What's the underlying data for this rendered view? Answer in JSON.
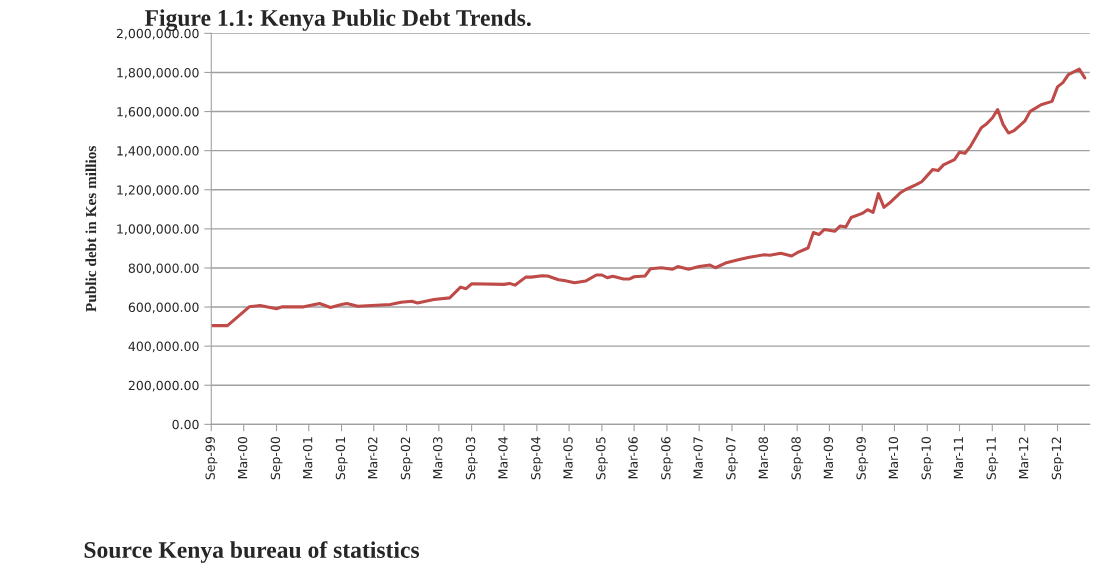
{
  "chart_data": {
    "type": "line",
    "title": "Figure 1.1: Kenya Public Debt Trends.",
    "ylabel": "Public debt in Kes millios",
    "annotations": [
      "Source Kenya bureau of statistics"
    ],
    "x": [
      "1999-09",
      "1999-12",
      "2000-04",
      "2000-06",
      "2000-09",
      "2000-10",
      "2001-02",
      "2001-05",
      "2001-07",
      "2001-09",
      "2001-10",
      "2001-12",
      "2002-06",
      "2002-08",
      "2002-10",
      "2002-11",
      "2003-02",
      "2003-05",
      "2003-07",
      "2003-08",
      "2003-09",
      "2004-03",
      "2004-04",
      "2004-05",
      "2004-07",
      "2004-08",
      "2004-10",
      "2004-11",
      "2005-01",
      "2005-02",
      "2005-04",
      "2005-06",
      "2005-08",
      "2005-09",
      "2005-10",
      "2005-11",
      "2006-01",
      "2006-02",
      "2006-03",
      "2006-05",
      "2006-06",
      "2006-08",
      "2006-10",
      "2006-11",
      "2007-01",
      "2007-03",
      "2007-05",
      "2007-06",
      "2007-08",
      "2007-10",
      "2007-12",
      "2008-03",
      "2008-04",
      "2008-06",
      "2008-08",
      "2008-09",
      "2008-11",
      "2008-12",
      "2009-01",
      "2009-02",
      "2009-04",
      "2009-05",
      "2009-06",
      "2009-07",
      "2009-09",
      "2009-10",
      "2009-11",
      "2009-12",
      "2010-01",
      "2010-02",
      "2010-04",
      "2010-05",
      "2010-07",
      "2010-08",
      "2010-10",
      "2010-11",
      "2010-12",
      "2011-02",
      "2011-03",
      "2011-04",
      "2011-05",
      "2011-07",
      "2011-08",
      "2011-09",
      "2011-10",
      "2011-11",
      "2011-12",
      "2012-01",
      "2012-03",
      "2012-04",
      "2012-06",
      "2012-08",
      "2012-09",
      "2012-10",
      "2012-11",
      "2013-01",
      "2013-02"
    ],
    "series": [
      {
        "color": "#be4b48",
        "values": [
          505000,
          505000,
          601000,
          608000,
          591000,
          601000,
          601000,
          618000,
          598000,
          613000,
          618000,
          604000,
          613000,
          625000,
          630000,
          621000,
          639000,
          647000,
          702000,
          694000,
          719000,
          716000,
          721000,
          712000,
          753000,
          753000,
          760000,
          759000,
          740000,
          736000,
          724000,
          733000,
          764000,
          764000,
          750000,
          757000,
          743000,
          743000,
          755000,
          759000,
          796000,
          801000,
          793000,
          807000,
          793000,
          807000,
          815000,
          801000,
          827000,
          841000,
          853000,
          868000,
          865000,
          875000,
          861000,
          878000,
          902000,
          981000,
          971000,
          997000,
          988000,
          1015000,
          1009000,
          1058000,
          1079000,
          1098000,
          1084000,
          1180000,
          1110000,
          1132000,
          1183000,
          1200000,
          1226000,
          1241000,
          1303000,
          1298000,
          1327000,
          1354000,
          1392000,
          1387000,
          1421000,
          1517000,
          1538000,
          1567000,
          1610000,
          1533000,
          1490000,
          1502000,
          1551000,
          1601000,
          1635000,
          1652000,
          1726000,
          1748000,
          1789000,
          1817000,
          1772000
        ]
      }
    ],
    "xlim": [
      "1999-09",
      "2013-03"
    ],
    "xticks": [
      {
        "value": "1999-09",
        "label": "Sep-99"
      },
      {
        "value": "2000-03",
        "label": "Mar-00"
      },
      {
        "value": "2000-09",
        "label": "Sep-00"
      },
      {
        "value": "2001-03",
        "label": "Mar-01"
      },
      {
        "value": "2001-09",
        "label": "Sep-01"
      },
      {
        "value": "2002-03",
        "label": "Mar-02"
      },
      {
        "value": "2002-09",
        "label": "Sep-02"
      },
      {
        "value": "2003-03",
        "label": "Mar-03"
      },
      {
        "value": "2003-09",
        "label": "Sep-03"
      },
      {
        "value": "2004-03",
        "label": "Mar-04"
      },
      {
        "value": "2004-09",
        "label": "Sep-04"
      },
      {
        "value": "2005-03",
        "label": "Mar-05"
      },
      {
        "value": "2005-09",
        "label": "Sep-05"
      },
      {
        "value": "2006-03",
        "label": "Mar-06"
      },
      {
        "value": "2006-09",
        "label": "Sep-06"
      },
      {
        "value": "2007-03",
        "label": "Mar-07"
      },
      {
        "value": "2007-09",
        "label": "Sep-07"
      },
      {
        "value": "2008-03",
        "label": "Mar-08"
      },
      {
        "value": "2008-09",
        "label": "Sep-08"
      },
      {
        "value": "2009-03",
        "label": "Mar-09"
      },
      {
        "value": "2009-09",
        "label": "Sep-09"
      },
      {
        "value": "2010-03",
        "label": "Mar-10"
      },
      {
        "value": "2010-09",
        "label": "Sep-10"
      },
      {
        "value": "2011-03",
        "label": "Mar-11"
      },
      {
        "value": "2011-09",
        "label": "Sep-11"
      },
      {
        "value": "2012-03",
        "label": "Mar-12"
      },
      {
        "value": "2012-09",
        "label": "Sep-12"
      }
    ],
    "ylim": [
      0,
      2000000
    ],
    "yticks": [
      {
        "value": 0,
        "label": "0.00"
      },
      {
        "value": 200000,
        "label": "200,000.00"
      },
      {
        "value": 400000,
        "label": "400,000.00"
      },
      {
        "value": 600000,
        "label": "600,000.00"
      },
      {
        "value": 800000,
        "label": "800,000.00"
      },
      {
        "value": 1000000,
        "label": "1,000,000.00"
      },
      {
        "value": 1200000,
        "label": "1,200,000.00"
      },
      {
        "value": 1400000,
        "label": "1,400,000.00"
      },
      {
        "value": 1600000,
        "label": "1,600,000.00"
      },
      {
        "value": 1800000,
        "label": "1,800,000.00"
      },
      {
        "value": 2000000,
        "label": "2,000,000.00"
      }
    ],
    "grid": "y",
    "marker": "none",
    "line_style": "solid"
  }
}
